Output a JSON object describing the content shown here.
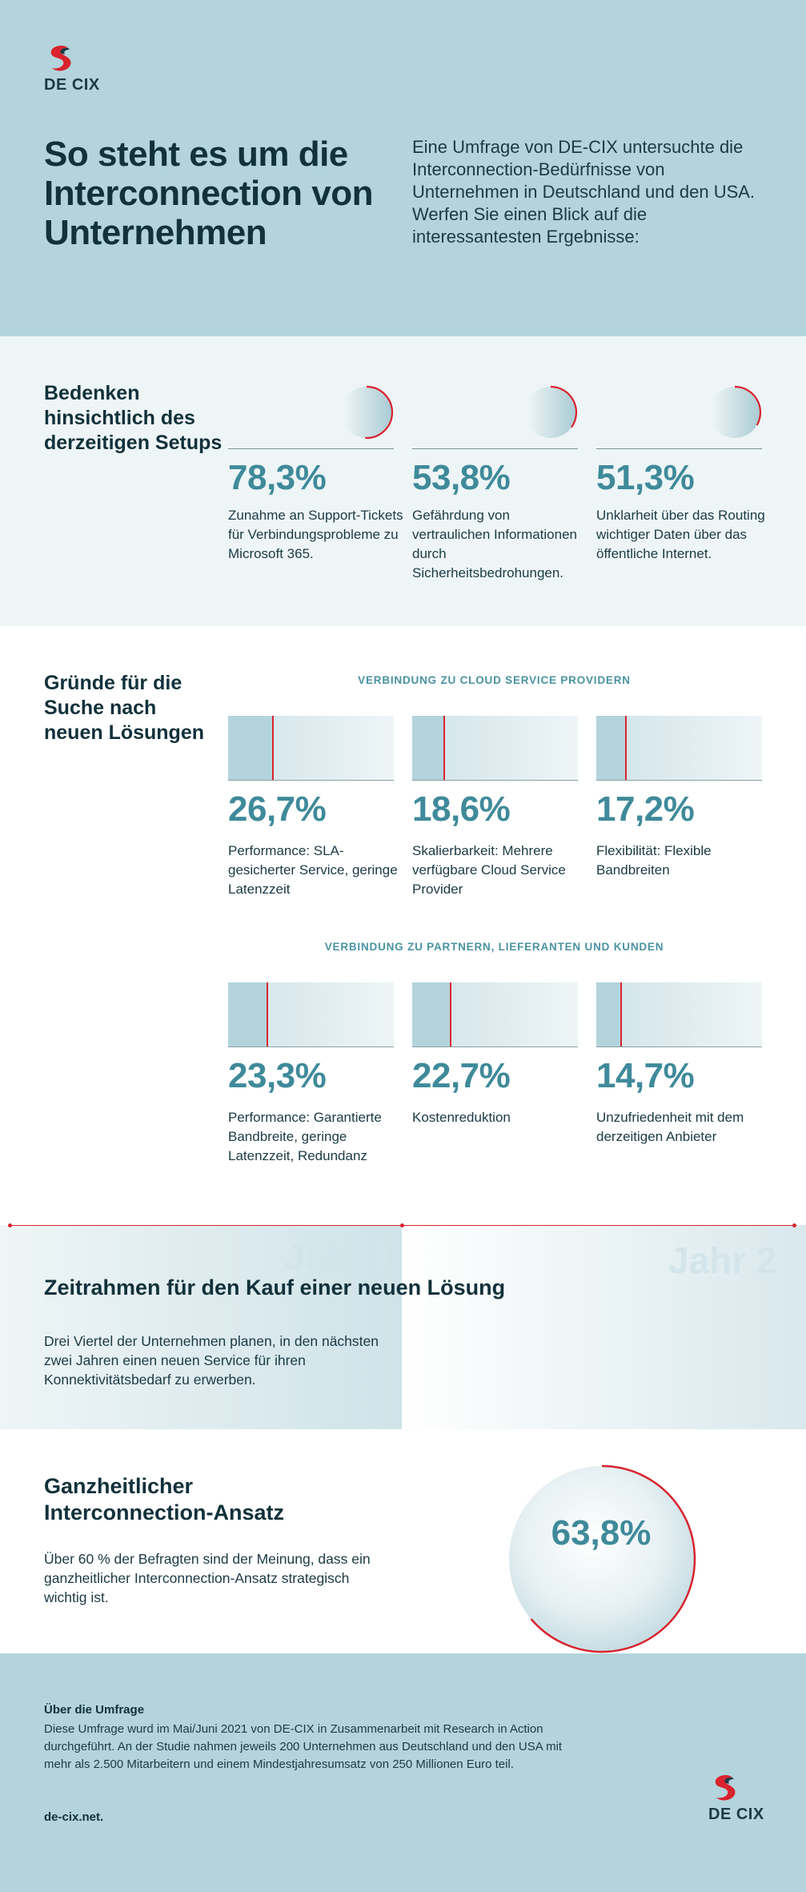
{
  "brand": {
    "name": "DE CIX",
    "accent": "#d9232e",
    "dark": "#1b3a45",
    "teal": "#3f8a9a",
    "light_blue": "#b3d4dc"
  },
  "header": {
    "title": "So steht es um die Interconnection von Unternehmen",
    "intro": "Eine Umfrage von DE-CIX untersuchte die Interconnection-Bedürfnisse von Unternehmen in Deutschland und den USA. Werfen Sie einen Blick auf die interessantesten Ergebnisse:"
  },
  "concerns": {
    "heading": "Bedenken hinsichtlich des derzeitigen Setups",
    "items": [
      {
        "value": 78.3,
        "pct": "78,3%",
        "desc": "Zunahme an Support-Tickets für Verbindungsprobleme zu Microsoft 365."
      },
      {
        "value": 53.8,
        "pct": "53,8%",
        "desc": "Gefährdung von vertraulichen Informationen durch Sicherheitsbedrohungen."
      },
      {
        "value": 51.3,
        "pct": "51,3%",
        "desc": "Unklarheit über das Routing wichtiger Daten über das öffentliche Internet."
      }
    ]
  },
  "reasons": {
    "heading": "Gründe für die Suche nach neuen Lösungen",
    "group1": {
      "label": "VERBINDUNG ZU CLOUD SERVICE PROVIDERN",
      "items": [
        {
          "value": 26.7,
          "pct": "26,7%",
          "desc": "Performance: SLA-gesicherter Service, geringe Latenzzeit"
        },
        {
          "value": 18.6,
          "pct": "18,6%",
          "desc": "Skalierbarkeit: Mehrere verfügbare Cloud Service Provider"
        },
        {
          "value": 17.2,
          "pct": "17,2%",
          "desc": "Flexibilität: Flexible Bandbreiten"
        }
      ]
    },
    "group2": {
      "label": "VERBINDUNG ZU PARTNERN, LIEFERANTEN UND KUNDEN",
      "items": [
        {
          "value": 23.3,
          "pct": "23,3%",
          "desc": "Performance: Garantierte Bandbreite, geringe Latenzzeit, Redundanz"
        },
        {
          "value": 22.7,
          "pct": "22,7%",
          "desc": "Kostenreduktion"
        },
        {
          "value": 14.7,
          "pct": "14,7%",
          "desc": "Unzufriedenheit mit dem derzeitigen Anbieter"
        }
      ]
    }
  },
  "timeline": {
    "year1": "Jahr 1",
    "year2": "Jahr 2",
    "heading": "Zeitrahmen für den Kauf einer neuen Lösung",
    "text": "Drei Viertel der Unternehmen planen, in den nächsten zwei Jahren einen neuen Service für ihren Konnektivitätsbedarf zu erwerben."
  },
  "holistic": {
    "heading": "Ganzheitlicher Interconnection-Ansatz",
    "text": "Über 60 % der Befragten sind der Meinung, dass ein ganzheitlicher Interconnection-Ansatz strategisch wichtig ist.",
    "value": 63.8,
    "pct": "63,8%"
  },
  "footer": {
    "heading": "Über die Umfrage",
    "text": "Diese Umfrage wurd im Mai/Juni 2021 von DE-CIX  in Zusammenarbeit mit Research in Action durchgeführt. An der Studie nahmen jeweils 200 Unternehmen aus Deutschland und den USA mit mehr als 2.500 Mitarbeitern und einem Mindestjahresumsatz von 250 Millionen Euro teil.",
    "link": "de-cix.net."
  }
}
